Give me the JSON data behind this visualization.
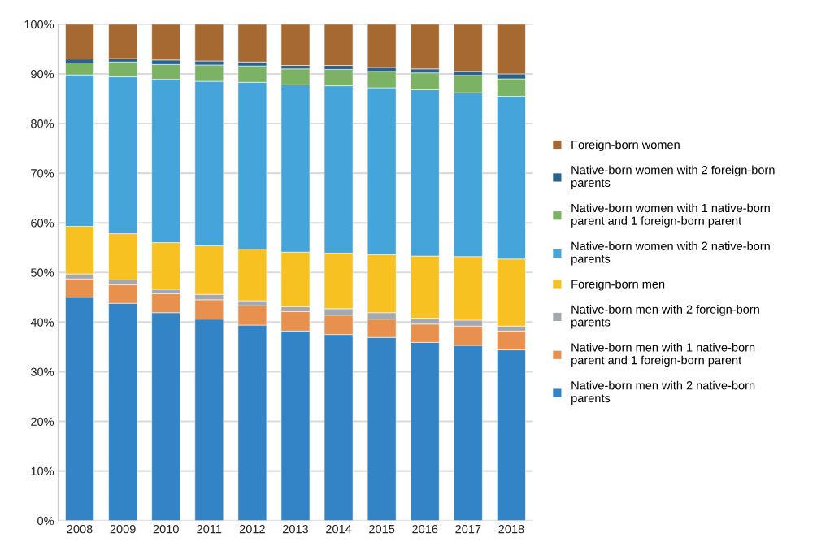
{
  "chart_data": {
    "type": "bar",
    "stacked": true,
    "categories": [
      "2008",
      "2009",
      "2010",
      "2011",
      "2012",
      "2013",
      "2014",
      "2015",
      "2016",
      "2017",
      "2018"
    ],
    "series": [
      {
        "name": "Native-born men with 2 native-born parents",
        "color": "#3384c6",
        "values": [
          45.0,
          43.8,
          41.9,
          40.6,
          39.4,
          38.2,
          37.5,
          36.9,
          35.9,
          35.3,
          34.4
        ]
      },
      {
        "name": "Native-born men with 1 native-born parent and 1 foreign-born parent",
        "color": "#e8914f",
        "values": [
          3.7,
          3.7,
          3.8,
          3.9,
          3.9,
          3.9,
          3.9,
          3.7,
          3.7,
          3.9,
          3.8
        ]
      },
      {
        "name": "Native-born men with 2 foreign-born parents",
        "color": "#a5a9ad",
        "values": [
          1.0,
          1.0,
          0.9,
          1.1,
          1.0,
          1.0,
          1.3,
          1.3,
          1.2,
          1.2,
          1.0
        ]
      },
      {
        "name": "Foreign-born men",
        "color": "#f7c122",
        "values": [
          9.6,
          9.3,
          9.4,
          9.8,
          10.4,
          11.0,
          11.2,
          11.7,
          12.5,
          12.8,
          13.5
        ]
      },
      {
        "name": "Native-born women with 2 native-born parents",
        "color": "#45a5da",
        "values": [
          30.5,
          31.6,
          32.9,
          33.1,
          33.6,
          33.7,
          33.7,
          33.6,
          33.5,
          33.0,
          32.8
        ]
      },
      {
        "name": "Native-born women with 1 native-born parent and 1 foreign-born parent",
        "color": "#7bb263",
        "values": [
          2.4,
          3.0,
          3.0,
          3.3,
          3.3,
          3.2,
          3.3,
          3.3,
          3.4,
          3.5,
          3.5
        ]
      },
      {
        "name": "Native-born women with 2 foreign-born parents",
        "color": "#28628f",
        "values": [
          0.8,
          0.7,
          0.9,
          0.8,
          0.8,
          0.7,
          0.8,
          0.8,
          0.8,
          0.8,
          1.0
        ]
      },
      {
        "name": "Foreign-born women",
        "color": "#a66932",
        "values": [
          7.0,
          6.9,
          7.2,
          7.4,
          7.6,
          8.3,
          8.3,
          8.7,
          9.0,
          9.5,
          10.0
        ]
      }
    ],
    "ylim": [
      0,
      100
    ],
    "yticks": [
      {
        "value": 0,
        "label": "0%"
      },
      {
        "value": 10,
        "label": "10%"
      },
      {
        "value": 20,
        "label": "20%"
      },
      {
        "value": 30,
        "label": "30%"
      },
      {
        "value": 40,
        "label": "40%"
      },
      {
        "value": 50,
        "label": "50%"
      },
      {
        "value": 60,
        "label": "60%"
      },
      {
        "value": 70,
        "label": "70%"
      },
      {
        "value": 80,
        "label": "80%"
      },
      {
        "value": 90,
        "label": "90%"
      },
      {
        "value": 100,
        "label": "100%"
      }
    ],
    "grid": "y",
    "legend": "right"
  }
}
